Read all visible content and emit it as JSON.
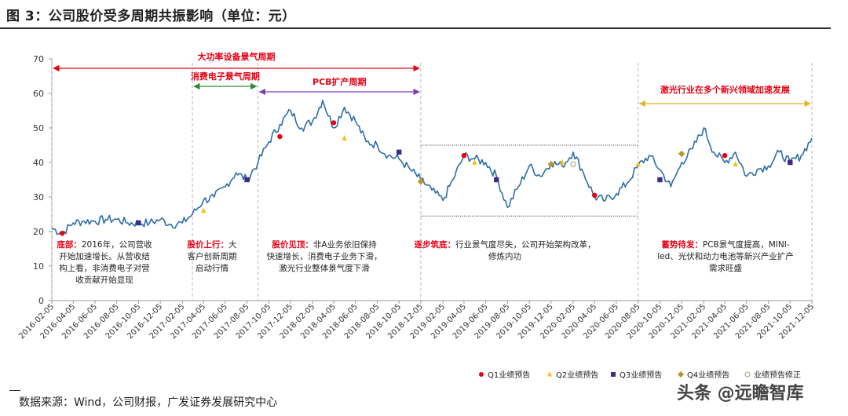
{
  "title": "图 3：公司股价受多周期共振影响（单位：元）",
  "source": "数据来源：Wind，公司财报，广发证券发展研究中心",
  "watermark": "头条 @远瞻智库",
  "colors": {
    "line": "#2e6ea6",
    "cycle_red": "#e60012",
    "cycle_green": "#2e8b2e",
    "cycle_purple": "#7b3fb0",
    "cycle_gold": "#e6b422",
    "text_red": "#e60012",
    "q1": "#e60012",
    "q2": "#f0c419",
    "q3": "#3a2c8c",
    "q4": "#b8962e",
    "revised": "#bdb39a"
  },
  "cycles": [
    {
      "label": "大功率设备景气周期",
      "start": "2016-02",
      "end": "2018-12",
      "color": "cycle_red"
    },
    {
      "label": "消费电子景气周期",
      "start": "2017-03",
      "end": "2017-09",
      "color": "cycle_green"
    },
    {
      "label": "PCB扩产周期",
      "start": "2017-09",
      "end": "2018-12",
      "color": "cycle_purple"
    },
    {
      "label": "激光行业在多个新兴领域加速发展",
      "start": "2020-08",
      "end": "2021-12",
      "color": "cycle_gold"
    }
  ],
  "annotations": [
    {
      "head": "底部：",
      "text": [
        "2016年，公司营收",
        "开始加速增长。从营收结",
        "构上看，非消费电子对营",
        "收贡献开始显现"
      ]
    },
    {
      "head": "股价上行：",
      "text": [
        "大",
        "客户创新周期",
        "启动行情"
      ]
    },
    {
      "head": "股价见顶：",
      "text": [
        "非A业务依旧保持",
        "快速增长，消费电子业务下滑，",
        "激光行业整体景气度下滑"
      ]
    },
    {
      "head": "逐步筑底：",
      "text": [
        "行业景气度尽失，公司开始架构改革，",
        "修炼内功"
      ]
    },
    {
      "head": "蓄势待发：",
      "text": [
        "PCB景气度提高，MINI-",
        "led、光伏和动力电池等新兴产业扩产",
        "需求旺盛"
      ]
    }
  ],
  "legend": [
    {
      "label": "Q1业绩预告",
      "key": "q1",
      "shape": "circle"
    },
    {
      "label": "Q2业绩预告",
      "key": "q2",
      "shape": "triangle"
    },
    {
      "label": "Q3业绩预告",
      "key": "q3",
      "shape": "square"
    },
    {
      "label": "Q4业绩预告",
      "key": "q4",
      "shape": "diamond"
    },
    {
      "label": "业绩预告修正",
      "key": "revised",
      "shape": "ring"
    }
  ],
  "chart_data": {
    "type": "line",
    "ylim": [
      0,
      70
    ],
    "yticks": [
      0,
      10,
      20,
      30,
      40,
      50,
      60,
      70
    ],
    "xticks": [
      "2016-02-05",
      "2016-04-05",
      "2016-06-05",
      "2016-08-05",
      "2016-10-05",
      "2016-12-05",
      "2017-02-05",
      "2017-04-05",
      "2017-06-05",
      "2017-08-05",
      "2017-10-05",
      "2017-12-05",
      "2018-02-05",
      "2018-04-05",
      "2018-06-05",
      "2018-08-05",
      "2018-10-05",
      "2018-12-05",
      "2019-02-05",
      "2019-04-05",
      "2019-06-05",
      "2019-08-05",
      "2019-10-05",
      "2019-12-05",
      "2020-02-05",
      "2020-04-05",
      "2020-06-05",
      "2020-08-05",
      "2020-10-05",
      "2020-12-05",
      "2021-02-05",
      "2021-04-05",
      "2021-06-05",
      "2021-08-05",
      "2021-10-05",
      "2021-12-05"
    ],
    "series": [
      {
        "x": [
          "2016-02",
          "2016-03",
          "2016-04",
          "2016-05",
          "2016-06",
          "2016-07",
          "2016-08",
          "2016-09",
          "2016-10",
          "2016-11",
          "2016-12",
          "2017-01",
          "2017-02",
          "2017-03",
          "2017-04",
          "2017-05",
          "2017-06",
          "2017-07",
          "2017-08",
          "2017-09",
          "2017-10",
          "2017-11",
          "2017-12",
          "2018-01",
          "2018-02",
          "2018-03",
          "2018-04",
          "2018-05",
          "2018-06",
          "2018-07",
          "2018-08",
          "2018-09",
          "2018-10",
          "2018-11",
          "2018-12",
          "2019-01",
          "2019-02",
          "2019-03",
          "2019-04",
          "2019-05",
          "2019-06",
          "2019-07",
          "2019-08",
          "2019-09",
          "2019-10",
          "2019-11",
          "2019-12",
          "2020-01",
          "2020-02",
          "2020-03",
          "2020-04",
          "2020-05",
          "2020-06",
          "2020-07",
          "2020-08",
          "2020-09",
          "2020-10",
          "2020-11",
          "2020-12",
          "2021-01",
          "2021-02",
          "2021-03",
          "2021-04",
          "2021-05",
          "2021-06",
          "2021-07",
          "2021-08",
          "2021-09",
          "2021-10",
          "2021-11",
          "2021-12"
        ],
        "values": [
          21,
          19.5,
          22.5,
          23,
          23,
          23.5,
          23.5,
          22.5,
          22.5,
          22.5,
          23.5,
          22,
          22.5,
          25,
          29,
          30,
          33,
          37,
          35,
          40,
          46,
          51,
          55,
          50,
          52,
          58,
          50,
          56,
          52,
          46,
          45,
          42,
          41,
          38,
          35,
          32,
          29,
          35,
          42,
          41,
          40,
          36,
          27,
          33,
          39,
          36,
          40,
          39,
          43,
          37,
          30,
          29,
          31,
          34,
          39,
          42,
          38,
          33,
          40,
          44,
          50,
          43,
          40,
          43,
          36,
          38,
          39,
          43,
          40,
          42,
          47
        ]
      }
    ],
    "events": [
      {
        "x": "2016-03",
        "y": 19.5,
        "type": "q1"
      },
      {
        "x": "2016-10",
        "y": 22.5,
        "type": "q3"
      },
      {
        "x": "2017-04",
        "y": 26,
        "type": "q2"
      },
      {
        "x": "2017-08",
        "y": 35,
        "type": "q3"
      },
      {
        "x": "2017-11",
        "y": 47.5,
        "type": "q1"
      },
      {
        "x": "2018-04",
        "y": 51.5,
        "type": "q1"
      },
      {
        "x": "2018-05",
        "y": 47,
        "type": "q2"
      },
      {
        "x": "2018-10",
        "y": 43,
        "type": "q3"
      },
      {
        "x": "2018-12",
        "y": 34.5,
        "type": "q4"
      },
      {
        "x": "2019-04",
        "y": 42,
        "type": "q1"
      },
      {
        "x": "2019-05",
        "y": 40,
        "type": "q2"
      },
      {
        "x": "2019-07",
        "y": 35,
        "type": "q3"
      },
      {
        "x": "2019-12",
        "y": 39.5,
        "type": "q4"
      },
      {
        "x": "2020-01",
        "y": 40,
        "type": "q2"
      },
      {
        "x": "2020-02",
        "y": 39.5,
        "type": "revised"
      },
      {
        "x": "2020-04",
        "y": 30.5,
        "type": "q1"
      },
      {
        "x": "2020-08",
        "y": 39.5,
        "type": "q2"
      },
      {
        "x": "2020-10",
        "y": 35,
        "type": "q3"
      },
      {
        "x": "2020-12",
        "y": 42.5,
        "type": "q4"
      },
      {
        "x": "2021-04",
        "y": 42,
        "type": "q1"
      },
      {
        "x": "2021-05",
        "y": 39.5,
        "type": "q2"
      },
      {
        "x": "2021-10",
        "y": 40,
        "type": "q3"
      }
    ],
    "reference_lines": [
      {
        "y": 45,
        "from": "2018-12",
        "to": "2020-08"
      },
      {
        "y": 24.5,
        "from": "2018-12",
        "to": "2020-08"
      }
    ],
    "grid": false
  }
}
